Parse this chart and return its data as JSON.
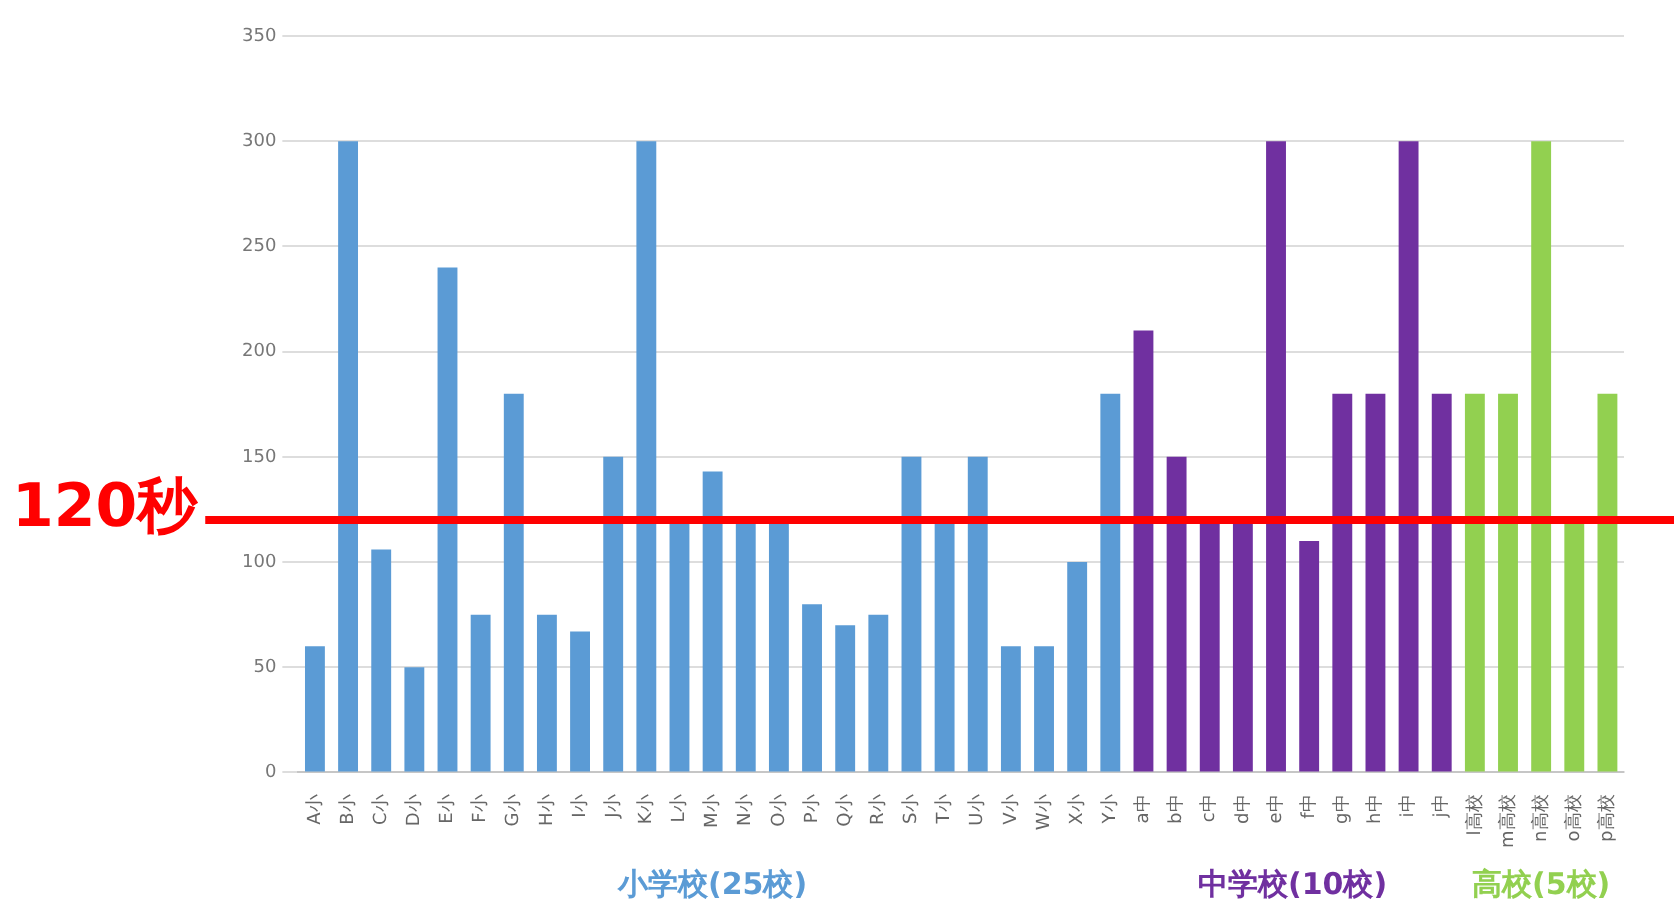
{
  "chart_data": {
    "type": "bar",
    "categories": [
      "A小",
      "B小",
      "C小",
      "D小",
      "E小",
      "F小",
      "G小",
      "H小",
      "I小",
      "J小",
      "K小",
      "L小",
      "M小",
      "N小",
      "O小",
      "P小",
      "Q小",
      "R小",
      "S小",
      "T小",
      "U小",
      "V小",
      "W小",
      "X小",
      "Y小",
      "a中",
      "b中",
      "c中",
      "d中",
      "e中",
      "f中",
      "g中",
      "h中",
      "i中",
      "j中",
      "l高校",
      "m高校",
      "n高校",
      "o高校",
      "p高校"
    ],
    "series": [
      {
        "name": "小学校(25校)",
        "color": "#5b9bd5",
        "values": [
          60,
          300,
          106,
          50,
          240,
          75,
          180,
          75,
          67,
          150,
          300,
          120,
          143,
          120,
          120,
          80,
          70,
          75,
          150,
          120,
          150,
          60,
          60,
          100,
          180,
          null,
          null,
          null,
          null,
          null,
          null,
          null,
          null,
          null,
          null,
          null,
          null,
          null,
          null,
          null
        ]
      },
      {
        "name": "中学校(10校)",
        "color": "#7030a0",
        "values": [
          null,
          null,
          null,
          null,
          null,
          null,
          null,
          null,
          null,
          null,
          null,
          null,
          null,
          null,
          null,
          null,
          null,
          null,
          null,
          null,
          null,
          null,
          null,
          null,
          null,
          210,
          150,
          120,
          120,
          300,
          110,
          180,
          180,
          300,
          180,
          null,
          null,
          null,
          null,
          null
        ]
      },
      {
        "name": "高校(5校)",
        "color": "#92d050",
        "values": [
          null,
          null,
          null,
          null,
          null,
          null,
          null,
          null,
          null,
          null,
          null,
          null,
          null,
          null,
          null,
          null,
          null,
          null,
          null,
          null,
          null,
          null,
          null,
          null,
          null,
          null,
          null,
          null,
          null,
          null,
          null,
          null,
          null,
          null,
          null,
          180,
          180,
          300,
          120,
          180
        ]
      }
    ],
    "ylim": [
      0,
      350
    ],
    "yticks": [
      0,
      50,
      100,
      150,
      200,
      250,
      300,
      350
    ],
    "grid": "y",
    "legend": false,
    "ref_lines": [
      {
        "axis": "y",
        "value": 120,
        "label": "120秒",
        "color": "#ff0000"
      }
    ]
  }
}
